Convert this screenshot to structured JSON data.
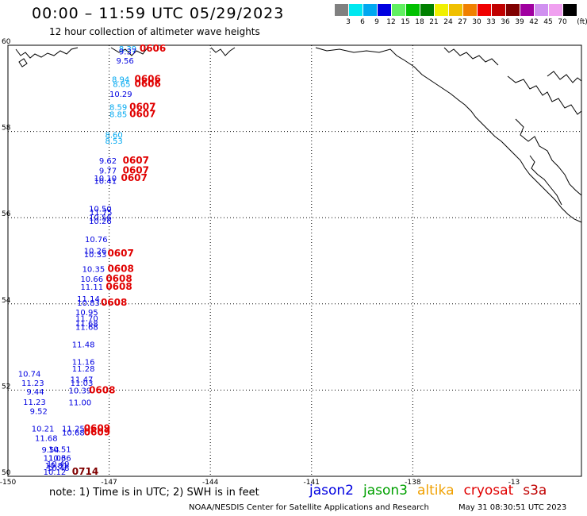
{
  "title": "00:00 – 11:59 UTC 05/29/2023",
  "subtitle": "12 hour collection of altimeter wave heights",
  "legend": {
    "unit": "(ft)",
    "bins": [
      {
        "label": "3",
        "color": "#808080"
      },
      {
        "label": "6",
        "color": "#00e8f0"
      },
      {
        "label": "9",
        "color": "#00a8f0"
      },
      {
        "label": "12",
        "color": "#0000e0"
      },
      {
        "label": "15",
        "color": "#60f060"
      },
      {
        "label": "18",
        "color": "#00c000"
      },
      {
        "label": "21",
        "color": "#008000"
      },
      {
        "label": "24",
        "color": "#f0f000"
      },
      {
        "label": "27",
        "color": "#f0c000"
      },
      {
        "label": "30",
        "color": "#f08000"
      },
      {
        "label": "33",
        "color": "#f00000"
      },
      {
        "label": "36",
        "color": "#c00000"
      },
      {
        "label": "39",
        "color": "#800000"
      },
      {
        "label": "42",
        "color": "#a000a0"
      },
      {
        "label": "45",
        "color": "#d090f0"
      },
      {
        "label": "70",
        "color": "#f0a0f0"
      },
      {
        "label": "",
        "color": "#000000"
      }
    ]
  },
  "axes": {
    "lon_ticks": [
      "-150",
      "-147",
      "-144",
      "-141",
      "-138",
      "-13"
    ],
    "lat_ticks": [
      "60",
      "58",
      "56",
      "54",
      "52",
      "50"
    ]
  },
  "note": "note: 1) Time is in UTC; 2) SWH is in feet",
  "missions": [
    {
      "name": "jason2",
      "color": "#0000e0"
    },
    {
      "name": "jason3",
      "color": "#00a000"
    },
    {
      "name": "altika",
      "color": "#f0a000"
    },
    {
      "name": "cryosat",
      "color": "#e00000"
    },
    {
      "name": "s3a",
      "color": "#c00000"
    }
  ],
  "footer_left": "NOAA/NESDIS Center for Satellite Applications and Research",
  "footer_right": "May 31 08:30:51 UTC 2023",
  "observations": [
    {
      "lon": -146.71,
      "lat": 59.85,
      "value": "8.39",
      "color": "#00a8f0"
    },
    {
      "lon": -146.71,
      "lat": 59.79,
      "value": "9.37",
      "color": "#0000e0"
    },
    {
      "lon": -146.79,
      "lat": 59.58,
      "value": "9.56",
      "color": "#0000e0"
    },
    {
      "lon": -146.92,
      "lat": 59.14,
      "value": "8.94",
      "color": "#00a8f0"
    },
    {
      "lon": -146.89,
      "lat": 59.03,
      "value": "8.65",
      "color": "#00a8f0"
    },
    {
      "lon": -146.99,
      "lat": 58.8,
      "value": "10.29",
      "color": "#0000e0"
    },
    {
      "lon": -146.99,
      "lat": 58.5,
      "value": "8.59",
      "color": "#00a8f0"
    },
    {
      "lon": -146.99,
      "lat": 58.33,
      "value": "8.85",
      "color": "#00a8f0"
    },
    {
      "lon": -147.12,
      "lat": 57.85,
      "value": "8.60",
      "color": "#00a8f0"
    },
    {
      "lon": -147.12,
      "lat": 57.72,
      "value": "8.53",
      "color": "#00a8f0"
    },
    {
      "lon": -147.3,
      "lat": 57.26,
      "value": "9.62",
      "color": "#0000e0"
    },
    {
      "lon": -147.3,
      "lat": 57.03,
      "value": "9.77",
      "color": "#0000e0"
    },
    {
      "lon": -147.45,
      "lat": 56.85,
      "value": "10.10",
      "color": "#0000e0"
    },
    {
      "lon": -147.45,
      "lat": 56.79,
      "value": "10.41",
      "color": "#0000e0"
    },
    {
      "lon": -147.6,
      "lat": 56.14,
      "value": "10.50",
      "color": "#0000e0"
    },
    {
      "lon": -147.58,
      "lat": 56.06,
      "value": "11.75",
      "color": "#0000e0"
    },
    {
      "lon": -147.6,
      "lat": 55.94,
      "value": "10.56",
      "color": "#0000e0"
    },
    {
      "lon": -147.6,
      "lat": 55.86,
      "value": "10.26",
      "color": "#0000e0"
    },
    {
      "lon": -147.72,
      "lat": 55.43,
      "value": "10.76",
      "color": "#0000e0"
    },
    {
      "lon": -147.75,
      "lat": 55.17,
      "value": "10.26",
      "color": "#0000e0"
    },
    {
      "lon": -147.75,
      "lat": 55.08,
      "value": "10.33",
      "color": "#0000e0"
    },
    {
      "lon": -147.8,
      "lat": 54.74,
      "value": "10.35",
      "color": "#0000e0"
    },
    {
      "lon": -147.85,
      "lat": 54.51,
      "value": "10.66",
      "color": "#0000e0"
    },
    {
      "lon": -147.85,
      "lat": 54.33,
      "value": "11.11",
      "color": "#0000e0"
    },
    {
      "lon": -147.95,
      "lat": 54.05,
      "value": "11.14",
      "color": "#0000e0"
    },
    {
      "lon": -147.95,
      "lat": 53.96,
      "value": "10.83",
      "color": "#0000e0"
    },
    {
      "lon": -148.0,
      "lat": 53.74,
      "value": "10.95",
      "color": "#0000e0"
    },
    {
      "lon": -148.0,
      "lat": 53.6,
      "value": "11.70",
      "color": "#0000e0"
    },
    {
      "lon": -148.0,
      "lat": 53.48,
      "value": "11.68",
      "color": "#0000e0"
    },
    {
      "lon": -148.0,
      "lat": 53.4,
      "value": "11.68",
      "color": "#0000e0"
    },
    {
      "lon": -148.1,
      "lat": 52.99,
      "value": "11.48",
      "color": "#0000e0"
    },
    {
      "lon": -148.1,
      "lat": 52.59,
      "value": "11.16",
      "color": "#0000e0"
    },
    {
      "lon": -148.1,
      "lat": 52.43,
      "value": "11.28",
      "color": "#0000e0"
    },
    {
      "lon": -148.15,
      "lat": 52.18,
      "value": "11.47",
      "color": "#0000e0"
    },
    {
      "lon": -148.15,
      "lat": 52.1,
      "value": "11.03",
      "color": "#0000e0"
    },
    {
      "lon": -148.2,
      "lat": 51.92,
      "value": "10.39",
      "color": "#0000e0"
    },
    {
      "lon": -148.2,
      "lat": 51.65,
      "value": "11.00",
      "color": "#0000e0"
    },
    {
      "lon": -148.4,
      "lat": 51.04,
      "value": "11.25",
      "color": "#0000e0"
    },
    {
      "lon": -148.4,
      "lat": 50.95,
      "value": "10.68",
      "color": "#0000e0"
    },
    {
      "lon": -148.8,
      "lat": 50.56,
      "value": "10.51",
      "color": "#0000e0"
    },
    {
      "lon": -148.8,
      "lat": 50.36,
      "value": "10.36",
      "color": "#0000e0"
    },
    {
      "lon": -148.85,
      "lat": 50.22,
      "value": "10.49",
      "color": "#0000e0"
    },
    {
      "lon": -148.85,
      "lat": 50.13,
      "value": "10.48",
      "color": "#0000e0"
    },
    {
      "lon": -148.95,
      "lat": 50.04,
      "value": "10.12",
      "color": "#0000e0"
    },
    {
      "lon": -149.7,
      "lat": 52.31,
      "value": "10.74",
      "color": "#0000e0"
    },
    {
      "lon": -149.6,
      "lat": 52.1,
      "value": "11.23",
      "color": "#0000e0"
    },
    {
      "lon": -149.45,
      "lat": 51.9,
      "value": "9.44",
      "color": "#0000e0"
    },
    {
      "lon": -149.55,
      "lat": 51.66,
      "value": "11.23",
      "color": "#0000e0"
    },
    {
      "lon": -149.35,
      "lat": 51.45,
      "value": "9.52",
      "color": "#0000e0"
    },
    {
      "lon": -149.3,
      "lat": 51.04,
      "value": "10.21",
      "color": "#0000e0"
    },
    {
      "lon": -149.2,
      "lat": 50.82,
      "value": "11.68",
      "color": "#0000e0"
    },
    {
      "lon": -149.0,
      "lat": 50.55,
      "value": "9.54",
      "color": "#0000e0"
    },
    {
      "lon": -148.95,
      "lat": 50.36,
      "value": "11.06",
      "color": "#0000e0"
    },
    {
      "lon": -148.9,
      "lat": 50.18,
      "value": "10.81",
      "color": "#0000e0"
    }
  ],
  "passes": [
    {
      "lon": -146.1,
      "lat": 59.85,
      "label": "0606",
      "color": "#e00000"
    },
    {
      "lon": -146.25,
      "lat": 59.14,
      "label": "0606",
      "color": "#e00000"
    },
    {
      "lon": -146.25,
      "lat": 59.03,
      "label": "0606",
      "color": "#e00000"
    },
    {
      "lon": -146.4,
      "lat": 58.5,
      "label": "0607",
      "color": "#e00000"
    },
    {
      "lon": -146.4,
      "lat": 58.33,
      "label": "0607",
      "color": "#e00000"
    },
    {
      "lon": -146.6,
      "lat": 57.26,
      "label": "0607",
      "color": "#e00000"
    },
    {
      "lon": -146.6,
      "lat": 57.03,
      "label": "0607",
      "color": "#e00000"
    },
    {
      "lon": -146.65,
      "lat": 56.85,
      "label": "0607",
      "color": "#e00000"
    },
    {
      "lon": -147.05,
      "lat": 55.1,
      "label": "0607",
      "color": "#e00000"
    },
    {
      "lon": -147.05,
      "lat": 54.74,
      "label": "0608",
      "color": "#e00000"
    },
    {
      "lon": -147.1,
      "lat": 54.51,
      "label": "0608",
      "color": "#e00000"
    },
    {
      "lon": -147.1,
      "lat": 54.33,
      "label": "0608",
      "color": "#e00000"
    },
    {
      "lon": -147.25,
      "lat": 53.96,
      "label": "0608",
      "color": "#e00000"
    },
    {
      "lon": -147.6,
      "lat": 51.92,
      "label": "0608",
      "color": "#e00000"
    },
    {
      "lon": -147.75,
      "lat": 51.04,
      "label": "0609",
      "color": "#e00000"
    },
    {
      "lon": -147.75,
      "lat": 50.95,
      "label": "0609",
      "color": "#e00000"
    },
    {
      "lon": -148.1,
      "lat": 50.04,
      "label": "0714",
      "color": "#800000"
    }
  ]
}
